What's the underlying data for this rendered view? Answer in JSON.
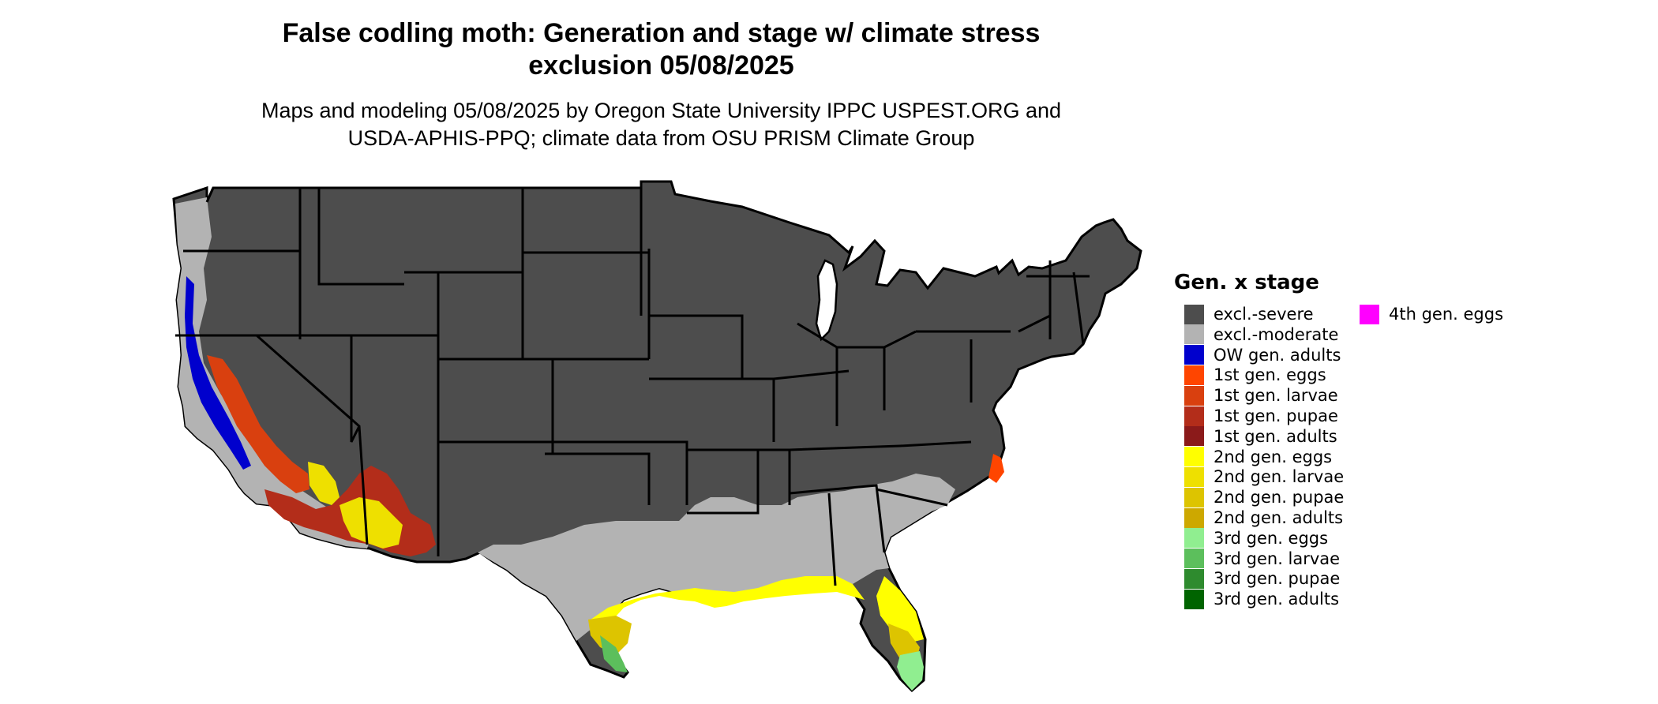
{
  "title": {
    "line1": "False codling moth: Generation and stage w/ climate stress",
    "line2": "exclusion 05/08/2025"
  },
  "subtitle": {
    "line1": "Maps and modeling 05/08/2025 by Oregon State University IPPC USPEST.ORG and",
    "line2": "USDA-APHIS-PPQ; climate data from OSU PRISM Climate Group"
  },
  "legend": {
    "title": "Gen. x stage",
    "items": [
      {
        "label": "excl.-severe",
        "color": "#4d4d4d"
      },
      {
        "label": "excl.-moderate",
        "color": "#b3b3b3"
      },
      {
        "label": "OW gen. adults",
        "color": "#0000cd"
      },
      {
        "label": "1st gen. eggs",
        "color": "#ff4500"
      },
      {
        "label": "1st gen. larvae",
        "color": "#d9400f"
      },
      {
        "label": "1st gen. pupae",
        "color": "#b32d1a"
      },
      {
        "label": "1st gen. adults",
        "color": "#8b1a1a"
      },
      {
        "label": "2nd gen. eggs",
        "color": "#ffff00"
      },
      {
        "label": "2nd gen. larvae",
        "color": "#eee000"
      },
      {
        "label": "2nd gen. pupae",
        "color": "#ddc400"
      },
      {
        "label": "2nd gen. adults",
        "color": "#cda800"
      },
      {
        "label": "3rd gen. eggs",
        "color": "#90ee90"
      },
      {
        "label": "3rd gen. larvae",
        "color": "#5cbf5c"
      },
      {
        "label": "3rd gen. pupae",
        "color": "#2e8b2e"
      },
      {
        "label": "3rd gen. adults",
        "color": "#006400"
      },
      {
        "label": "4th gen. eggs",
        "color": "#ff00ff"
      }
    ]
  },
  "map": {
    "region": "contiguous-united-states",
    "background_color": "#4d4d4d",
    "border_color": "#000000"
  }
}
